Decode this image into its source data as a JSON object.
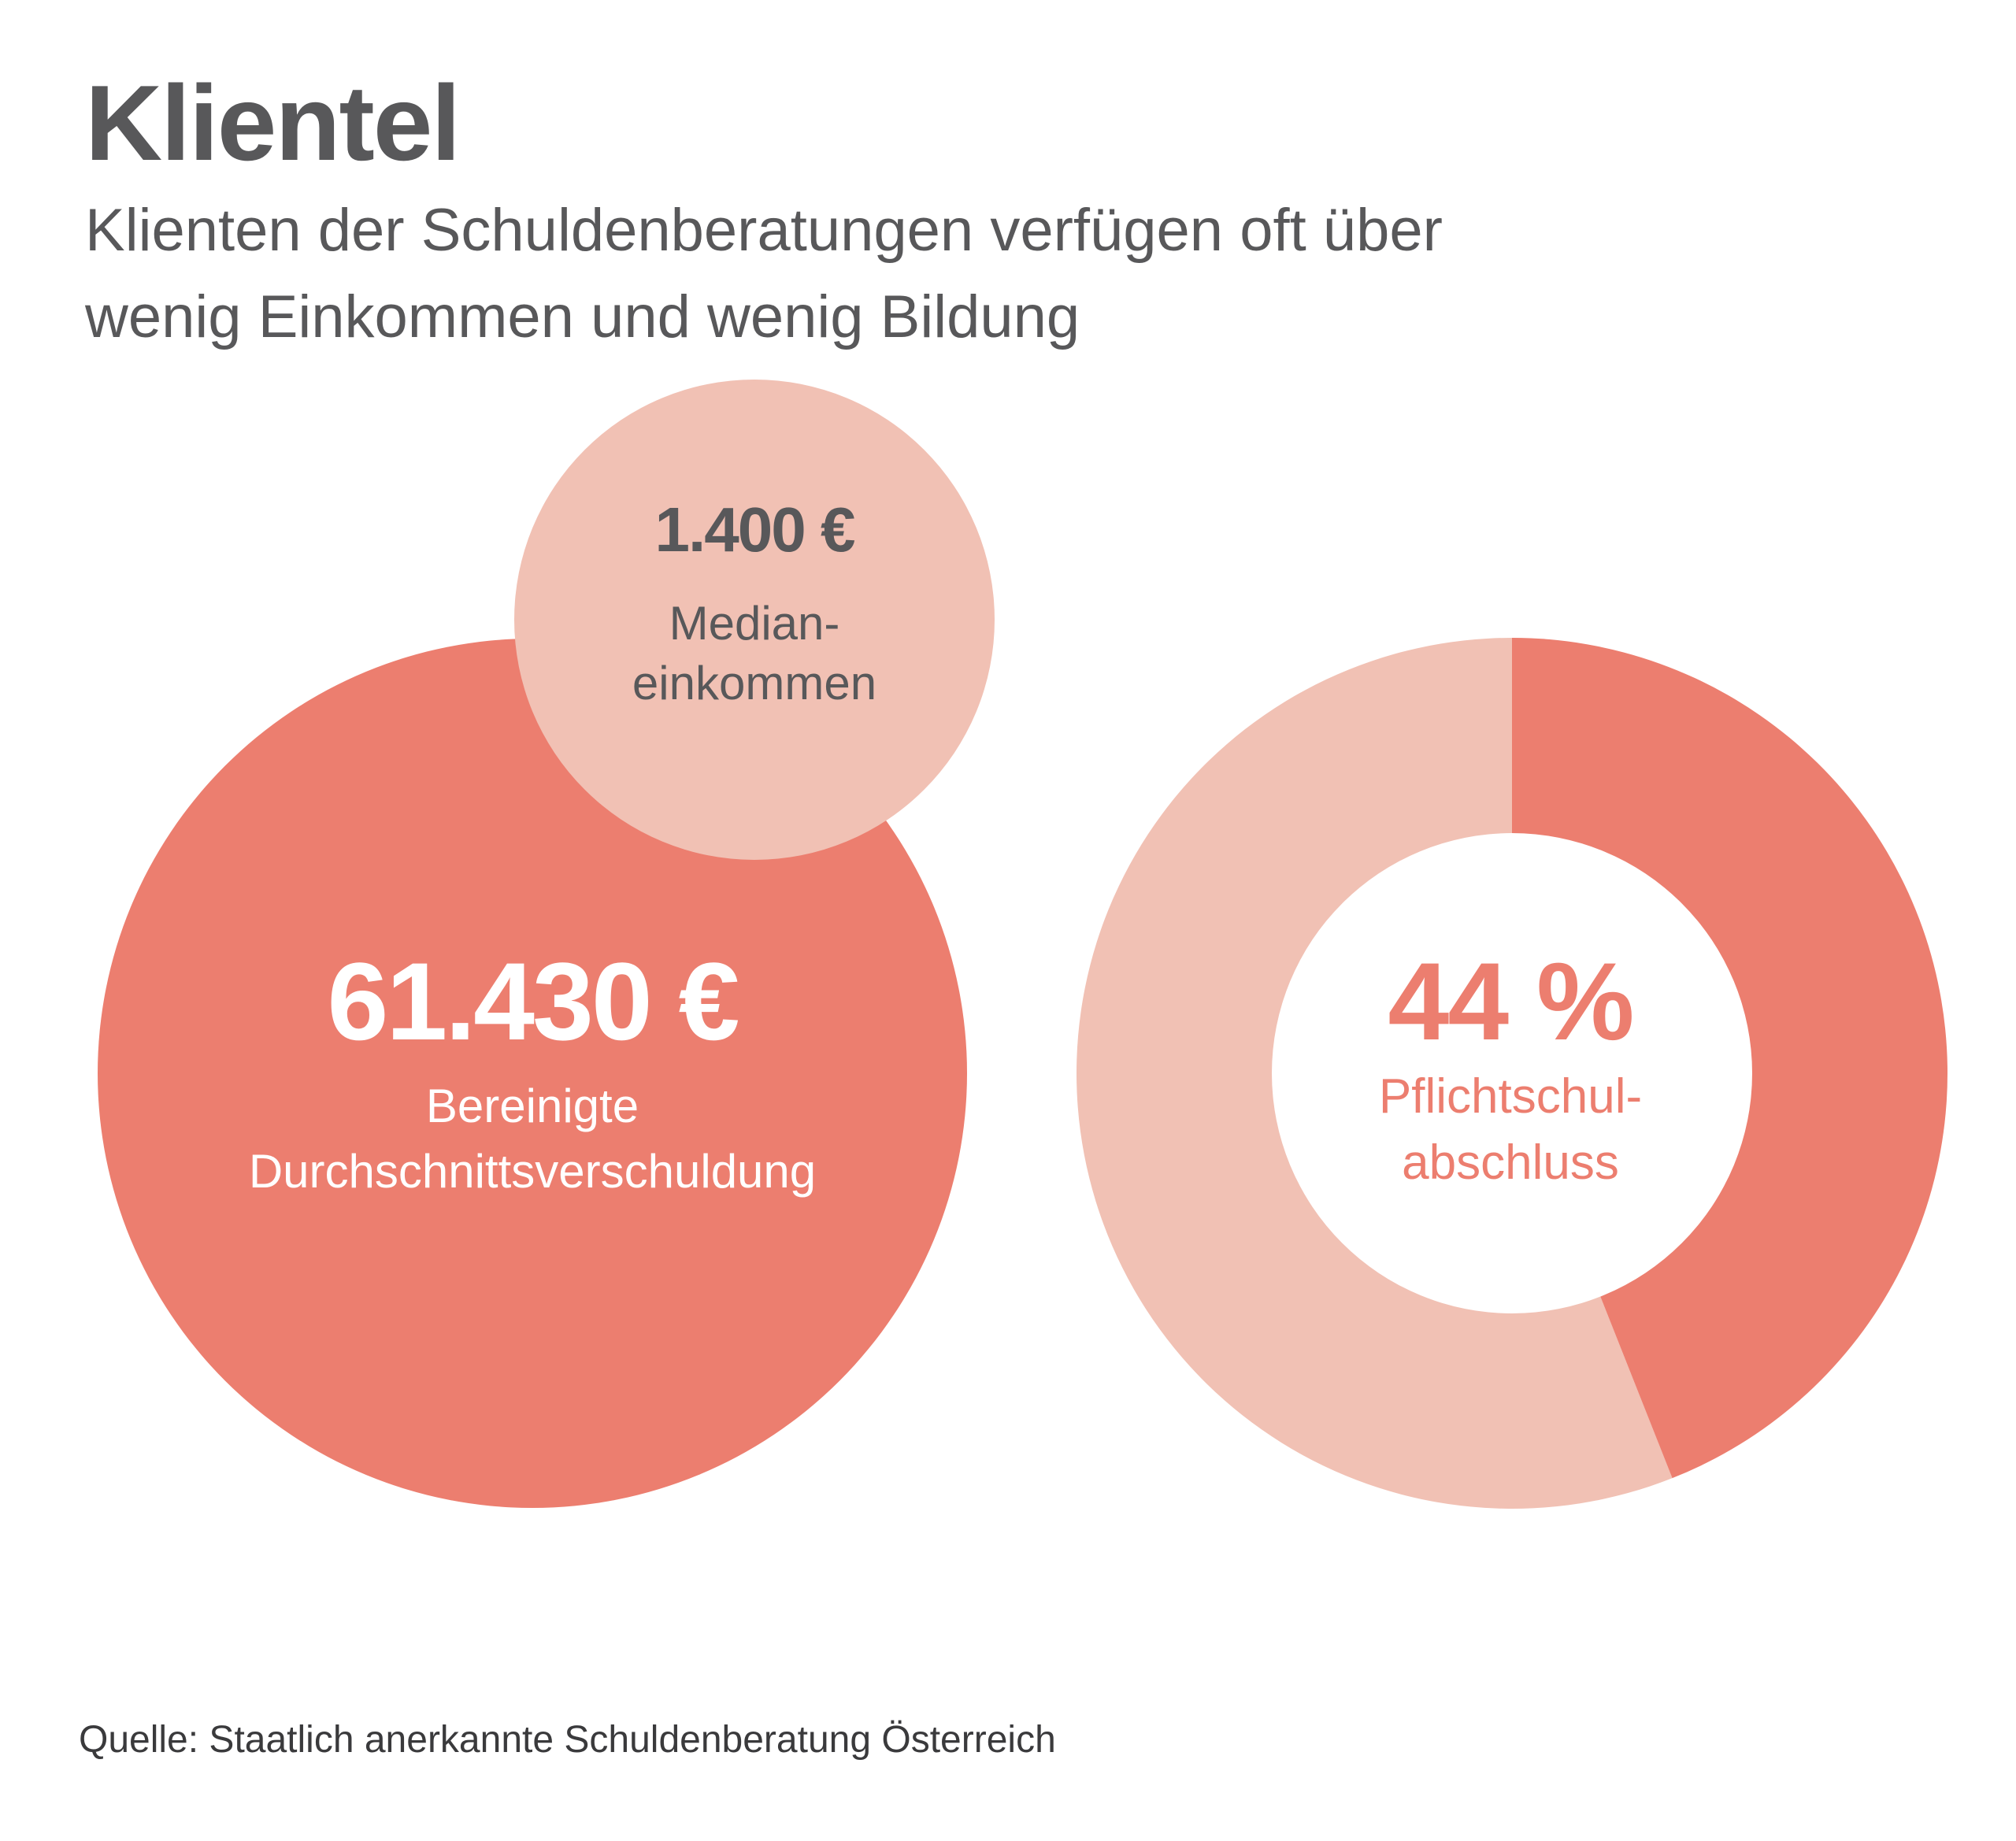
{
  "title": "Klientel",
  "subtitle": {
    "line1": "Klienten der Schuldenberatungen verfügen oft über",
    "line2": "wenig Einkommen und wenig Bildung"
  },
  "source": "Quelle: Staatlich anerkannte Schuldenberatung Österreich",
  "colors": {
    "dark": "#ec7e6f",
    "light": "#f1c1b4",
    "text": "#58585a",
    "white": "#ffffff"
  },
  "chart_data": [
    {
      "type": "bubble",
      "items": [
        {
          "value_label": "61.430 €",
          "value": 61430,
          "label_line1": "Bereinigte",
          "label_line2": "Durchschnittsverschuldung"
        },
        {
          "value_label": "1.400 €",
          "value": 1400,
          "label_line1": "Median-",
          "label_line2": "einkommen"
        }
      ]
    },
    {
      "type": "pie",
      "value_label": "44 %",
      "label_line1": "Pflichtschul-",
      "label_line2": "abschluss",
      "values": [
        44,
        56
      ]
    }
  ]
}
